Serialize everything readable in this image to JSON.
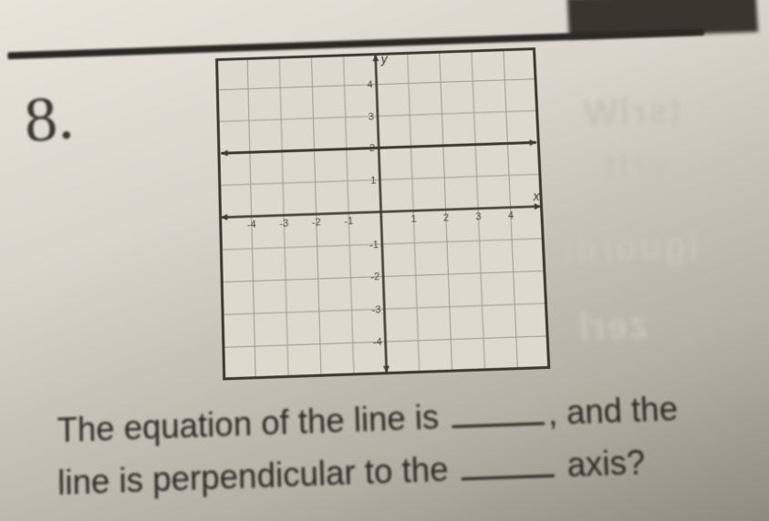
{
  "question_number": "8.",
  "ghost_text": {
    "g1": "tsrlW",
    "g2": "erlt",
    "g3": "lguordt",
    "g4": "zerl"
  },
  "graph": {
    "type": "line",
    "grid": {
      "xmin": -5,
      "xmax": 5,
      "ymin": -5,
      "ymax": 5,
      "step": 1
    },
    "axis_labels": {
      "x": "x",
      "y": "y"
    },
    "tick_values_x": [
      -4,
      -3,
      -2,
      -1,
      1,
      2,
      3,
      4
    ],
    "tick_values_y": [
      -4,
      -3,
      -2,
      -1,
      1,
      2,
      3,
      4
    ],
    "line": {
      "equation": "y = 2",
      "y_value": 2,
      "xmin": -5,
      "xmax": 5
    },
    "style": {
      "border_color": "#3d3a33",
      "border_width": 3,
      "grid_color": "#a09a8d",
      "grid_width": 1,
      "axis_color": "#3d3a33",
      "axis_width": 2.5,
      "line_color": "#3d3a33",
      "line_width": 3,
      "arrow_size": 8,
      "tick_font_size": 11,
      "tick_color": "#4a463d",
      "label_font_size": 14,
      "background": "#ded9ce"
    }
  },
  "text": {
    "line1_a": "The equation of the line is ",
    "line1_b": ", and the",
    "line2_a": "line is perpendicular to the ",
    "line2_b": " axis?"
  }
}
